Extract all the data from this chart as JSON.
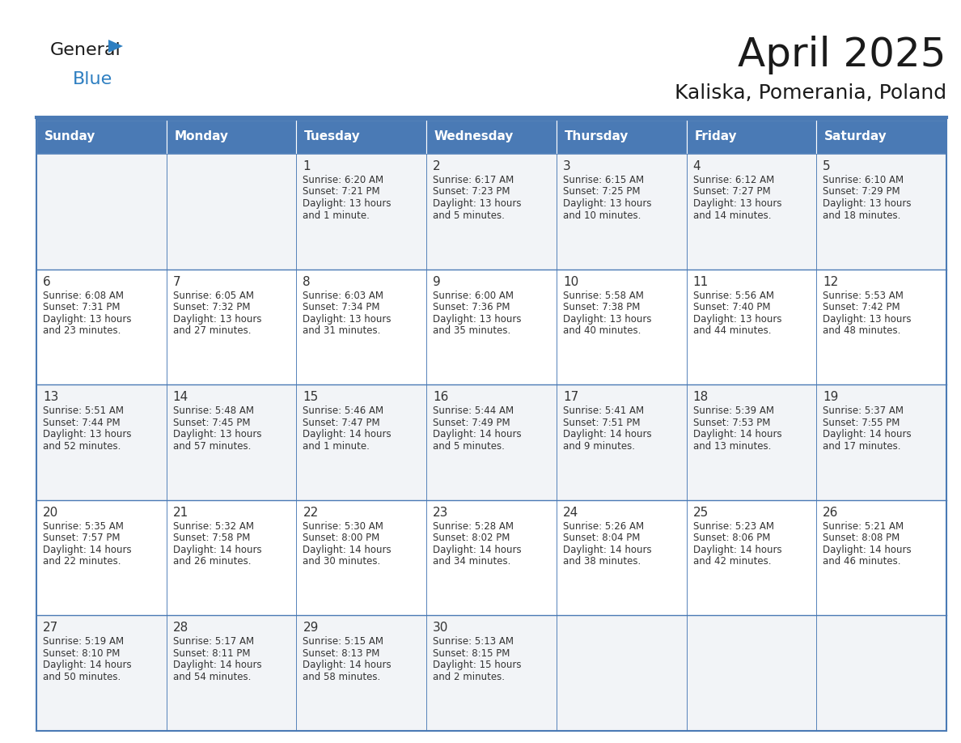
{
  "title": "April 2025",
  "subtitle": "Kaliska, Pomerania, Poland",
  "header_color": "#4a7ab5",
  "header_text_color": "#ffffff",
  "cell_bg_odd": "#f2f4f7",
  "cell_bg_even": "#ffffff",
  "border_color": "#4a7ab5",
  "text_color": "#333333",
  "days_of_week": [
    "Sunday",
    "Monday",
    "Tuesday",
    "Wednesday",
    "Thursday",
    "Friday",
    "Saturday"
  ],
  "weeks": [
    [
      {
        "day": "",
        "info": ""
      },
      {
        "day": "",
        "info": ""
      },
      {
        "day": "1",
        "info": "Sunrise: 6:20 AM\nSunset: 7:21 PM\nDaylight: 13 hours\nand 1 minute."
      },
      {
        "day": "2",
        "info": "Sunrise: 6:17 AM\nSunset: 7:23 PM\nDaylight: 13 hours\nand 5 minutes."
      },
      {
        "day": "3",
        "info": "Sunrise: 6:15 AM\nSunset: 7:25 PM\nDaylight: 13 hours\nand 10 minutes."
      },
      {
        "day": "4",
        "info": "Sunrise: 6:12 AM\nSunset: 7:27 PM\nDaylight: 13 hours\nand 14 minutes."
      },
      {
        "day": "5",
        "info": "Sunrise: 6:10 AM\nSunset: 7:29 PM\nDaylight: 13 hours\nand 18 minutes."
      }
    ],
    [
      {
        "day": "6",
        "info": "Sunrise: 6:08 AM\nSunset: 7:31 PM\nDaylight: 13 hours\nand 23 minutes."
      },
      {
        "day": "7",
        "info": "Sunrise: 6:05 AM\nSunset: 7:32 PM\nDaylight: 13 hours\nand 27 minutes."
      },
      {
        "day": "8",
        "info": "Sunrise: 6:03 AM\nSunset: 7:34 PM\nDaylight: 13 hours\nand 31 minutes."
      },
      {
        "day": "9",
        "info": "Sunrise: 6:00 AM\nSunset: 7:36 PM\nDaylight: 13 hours\nand 35 minutes."
      },
      {
        "day": "10",
        "info": "Sunrise: 5:58 AM\nSunset: 7:38 PM\nDaylight: 13 hours\nand 40 minutes."
      },
      {
        "day": "11",
        "info": "Sunrise: 5:56 AM\nSunset: 7:40 PM\nDaylight: 13 hours\nand 44 minutes."
      },
      {
        "day": "12",
        "info": "Sunrise: 5:53 AM\nSunset: 7:42 PM\nDaylight: 13 hours\nand 48 minutes."
      }
    ],
    [
      {
        "day": "13",
        "info": "Sunrise: 5:51 AM\nSunset: 7:44 PM\nDaylight: 13 hours\nand 52 minutes."
      },
      {
        "day": "14",
        "info": "Sunrise: 5:48 AM\nSunset: 7:45 PM\nDaylight: 13 hours\nand 57 minutes."
      },
      {
        "day": "15",
        "info": "Sunrise: 5:46 AM\nSunset: 7:47 PM\nDaylight: 14 hours\nand 1 minute."
      },
      {
        "day": "16",
        "info": "Sunrise: 5:44 AM\nSunset: 7:49 PM\nDaylight: 14 hours\nand 5 minutes."
      },
      {
        "day": "17",
        "info": "Sunrise: 5:41 AM\nSunset: 7:51 PM\nDaylight: 14 hours\nand 9 minutes."
      },
      {
        "day": "18",
        "info": "Sunrise: 5:39 AM\nSunset: 7:53 PM\nDaylight: 14 hours\nand 13 minutes."
      },
      {
        "day": "19",
        "info": "Sunrise: 5:37 AM\nSunset: 7:55 PM\nDaylight: 14 hours\nand 17 minutes."
      }
    ],
    [
      {
        "day": "20",
        "info": "Sunrise: 5:35 AM\nSunset: 7:57 PM\nDaylight: 14 hours\nand 22 minutes."
      },
      {
        "day": "21",
        "info": "Sunrise: 5:32 AM\nSunset: 7:58 PM\nDaylight: 14 hours\nand 26 minutes."
      },
      {
        "day": "22",
        "info": "Sunrise: 5:30 AM\nSunset: 8:00 PM\nDaylight: 14 hours\nand 30 minutes."
      },
      {
        "day": "23",
        "info": "Sunrise: 5:28 AM\nSunset: 8:02 PM\nDaylight: 14 hours\nand 34 minutes."
      },
      {
        "day": "24",
        "info": "Sunrise: 5:26 AM\nSunset: 8:04 PM\nDaylight: 14 hours\nand 38 minutes."
      },
      {
        "day": "25",
        "info": "Sunrise: 5:23 AM\nSunset: 8:06 PM\nDaylight: 14 hours\nand 42 minutes."
      },
      {
        "day": "26",
        "info": "Sunrise: 5:21 AM\nSunset: 8:08 PM\nDaylight: 14 hours\nand 46 minutes."
      }
    ],
    [
      {
        "day": "27",
        "info": "Sunrise: 5:19 AM\nSunset: 8:10 PM\nDaylight: 14 hours\nand 50 minutes."
      },
      {
        "day": "28",
        "info": "Sunrise: 5:17 AM\nSunset: 8:11 PM\nDaylight: 14 hours\nand 54 minutes."
      },
      {
        "day": "29",
        "info": "Sunrise: 5:15 AM\nSunset: 8:13 PM\nDaylight: 14 hours\nand 58 minutes."
      },
      {
        "day": "30",
        "info": "Sunrise: 5:13 AM\nSunset: 8:15 PM\nDaylight: 15 hours\nand 2 minutes."
      },
      {
        "day": "",
        "info": ""
      },
      {
        "day": "",
        "info": ""
      },
      {
        "day": "",
        "info": ""
      }
    ]
  ],
  "logo_color_general": "#1a1a1a",
  "logo_color_blue": "#2e7fc1",
  "logo_triangle_color": "#2e7fc1",
  "title_fontsize": 36,
  "subtitle_fontsize": 18,
  "header_fontsize": 11,
  "day_num_fontsize": 11,
  "info_fontsize": 8.5
}
